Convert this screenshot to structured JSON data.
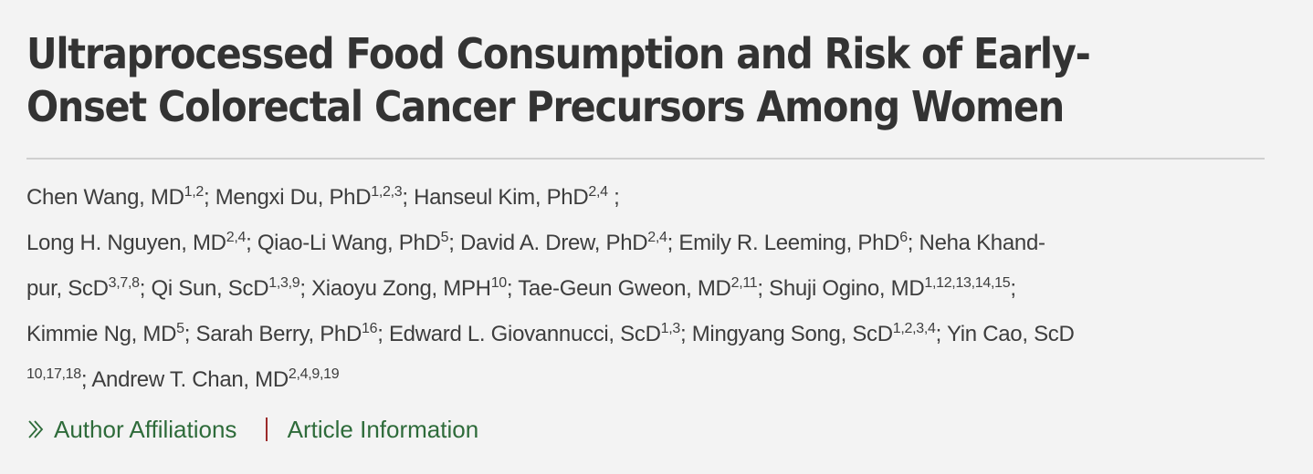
{
  "article": {
    "title_line1": "Ultraprocessed Food Consumption and Risk of Early-",
    "title_line2": "Onset Colorectal Cancer Precursors Among Women"
  },
  "authors": {
    "lines": [
      [
        {
          "name": "Chen Wang, MD",
          "sup": "1,2",
          "sep": "; "
        },
        {
          "name": "Mengxi Du, PhD",
          "sup": "1,2,3",
          "sep": "; "
        },
        {
          "name": "Hanseul Kim, PhD",
          "sup": "2,4",
          "sep": " ;"
        }
      ],
      [
        {
          "name": "Long H. Nguyen, MD",
          "sup": "2,4",
          "sep": "; "
        },
        {
          "name": "Qiao-Li Wang, PhD",
          "sup": "5",
          "sep": "; "
        },
        {
          "name": "David A. Drew, PhD",
          "sup": "2,4",
          "sep": "; "
        },
        {
          "name": "Emily R. Leeming, PhD",
          "sup": "6",
          "sep": "; "
        },
        {
          "name": "Neha Khand-",
          "sup": "",
          "sep": ""
        }
      ],
      [
        {
          "name": "pur, ScD",
          "sup": "3,7,8",
          "sep": "; "
        },
        {
          "name": "Qi Sun, ScD",
          "sup": "1,3,9",
          "sep": "; "
        },
        {
          "name": "Xiaoyu Zong, MPH",
          "sup": "10",
          "sep": "; "
        },
        {
          "name": "Tae-Geun Gweon, MD",
          "sup": "2,11",
          "sep": "; "
        },
        {
          "name": "Shuji Ogino, MD",
          "sup": "1,12,13,14,15",
          "sep": ";"
        }
      ],
      [
        {
          "name": "Kimmie Ng, MD",
          "sup": "5",
          "sep": "; "
        },
        {
          "name": "Sarah Berry, PhD",
          "sup": "16",
          "sep": "; "
        },
        {
          "name": "Edward L. Giovannucci, ScD",
          "sup": "1,3",
          "sep": "; "
        },
        {
          "name": "Mingyang Song, ScD",
          "sup": "1,2,3,4",
          "sep": "; "
        },
        {
          "name": "Yin Cao, ScD",
          "sup": "",
          "sep": ""
        }
      ],
      [
        {
          "name": "",
          "sup": "10,17,18",
          "sep": "; "
        },
        {
          "name": "Andrew T. Chan, MD",
          "sup": "2,4,9,19",
          "sep": ""
        }
      ]
    ]
  },
  "links": {
    "affiliations_icon": "double-chevron-right-icon",
    "affiliations_label": "Author Affiliations",
    "article_info_label": "Article Information",
    "link_color": "#2e6b3a",
    "separator_color": "#9b2a2a"
  }
}
